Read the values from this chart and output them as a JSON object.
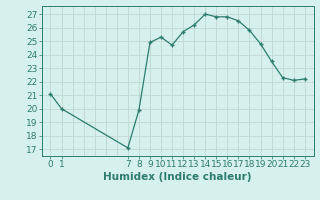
{
  "x": [
    0,
    1,
    7,
    8,
    9,
    10,
    11,
    12,
    13,
    14,
    15,
    16,
    17,
    18,
    19,
    20,
    21,
    22,
    23
  ],
  "y": [
    21.1,
    20.0,
    17.1,
    19.9,
    24.9,
    25.3,
    24.7,
    25.7,
    26.2,
    27.0,
    26.8,
    26.8,
    26.5,
    25.8,
    24.8,
    23.5,
    22.3,
    22.1,
    22.2
  ],
  "line_color": "#2e7d6e",
  "bg_color": "#d6f0ee",
  "grid_color": "#c0d8d0",
  "xlabel": "Humidex (Indice chaleur)",
  "ylim": [
    16.5,
    27.6
  ],
  "yticks": [
    17,
    18,
    19,
    20,
    21,
    22,
    23,
    24,
    25,
    26,
    27
  ],
  "xticks": [
    0,
    1,
    7,
    8,
    9,
    10,
    11,
    12,
    13,
    14,
    15,
    16,
    17,
    18,
    19,
    20,
    21,
    22,
    23
  ],
  "xlim": [
    -0.8,
    23.8
  ],
  "tick_color": "#2e7d6e",
  "font_size": 6.5,
  "xlabel_fontsize": 7.5,
  "marker": "+"
}
